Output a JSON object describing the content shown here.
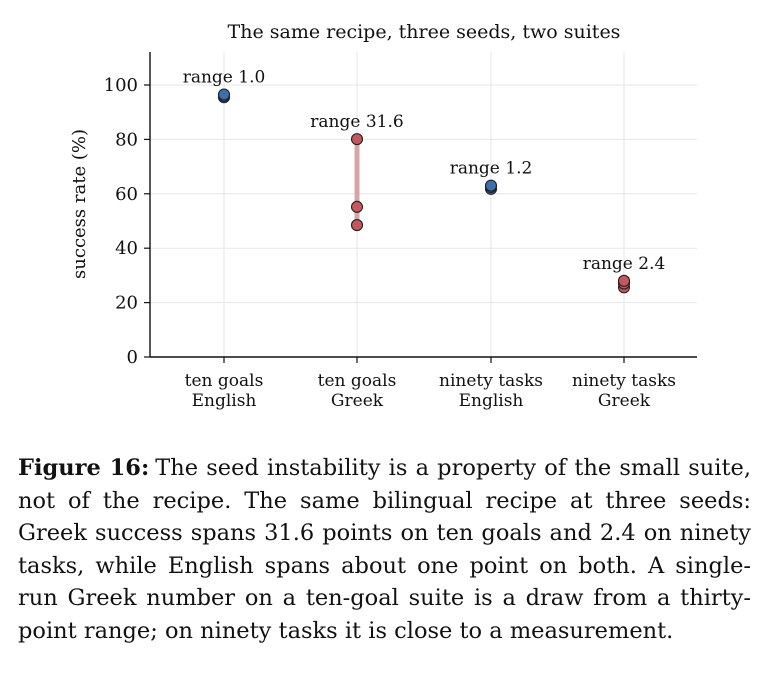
{
  "chart_data": {
    "type": "scatter",
    "title": "The same recipe, three seeds, two suites",
    "ylabel": "success rate (%)",
    "xlabel": "",
    "ylim": [
      0,
      110
    ],
    "yticks": [
      0,
      20,
      40,
      60,
      80,
      100
    ],
    "grid": true,
    "categories": [
      [
        "ten goals",
        "English"
      ],
      [
        "ten goals",
        "Greek"
      ],
      [
        "ninety tasks",
        "English"
      ],
      [
        "ninety tasks",
        "Greek"
      ]
    ],
    "groups": [
      {
        "language": "English",
        "values": [
          95.5,
          96.0,
          96.5
        ],
        "range_label": "range 1.0"
      },
      {
        "language": "Greek",
        "values": [
          48.5,
          55.2,
          80.1
        ],
        "range_label": "range 31.6"
      },
      {
        "language": "English",
        "values": [
          61.8,
          62.5,
          63.0
        ],
        "range_label": "range 1.2"
      },
      {
        "language": "Greek",
        "values": [
          25.6,
          27.0,
          28.0
        ],
        "range_label": "range 2.4"
      }
    ],
    "colors": {
      "English": "#3b6fae",
      "Greek": "#c4585d",
      "range_bar": "#d9a4a4"
    }
  },
  "caption": {
    "label": "Figure 16:",
    "text": "The seed instability is a property of the small suite, not of the recipe. The same bilingual recipe at three seeds: Greek success spans 31.6 points on ten goals and 2.4 on ninety tasks, while English spans about one point on both. A single-run Greek number on a ten-goal suite is a draw from a thirty-point range; on ninety tasks it is close to a measurement."
  }
}
